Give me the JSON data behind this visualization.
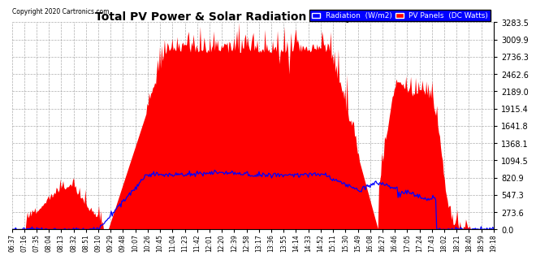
{
  "title": "Total PV Power & Solar Radiation Tue Apr 7 19:29",
  "copyright": "Copyright 2020 Cartronics.com",
  "yticks": [
    0.0,
    273.6,
    547.3,
    820.9,
    1094.5,
    1368.1,
    1641.8,
    1915.4,
    2189.0,
    2462.6,
    2736.3,
    3009.9,
    3283.5
  ],
  "ytick_labels": [
    "0.0",
    "273.6",
    "547.3",
    "820.9",
    "1094.5",
    "1368.1",
    "1641.8",
    "1915.4",
    "2189.0",
    "2462.6",
    "2736.3",
    "3009.9",
    "3283.5"
  ],
  "ymax": 3283.5,
  "legend_radiation_label": "Radiation  (W/m2)",
  "legend_pv_label": "PV Panels  (DC Watts)",
  "radiation_color": "#0000ff",
  "pv_color": "#ff0000",
  "background_color": "#ffffff",
  "grid_color": "#999999",
  "xtick_labels": [
    "06:37",
    "07:16",
    "07:35",
    "08:04",
    "08:13",
    "08:32",
    "08:51",
    "09:10",
    "09:29",
    "09:48",
    "10:07",
    "10:26",
    "10:45",
    "11:04",
    "11:23",
    "11:42",
    "12:01",
    "12:20",
    "12:39",
    "12:58",
    "13:17",
    "13:36",
    "13:55",
    "14:14",
    "14:33",
    "14:52",
    "15:11",
    "15:30",
    "15:49",
    "16:08",
    "16:27",
    "16:46",
    "17:05",
    "17:24",
    "17:43",
    "18:02",
    "18:21",
    "18:40",
    "18:59",
    "19:18"
  ]
}
